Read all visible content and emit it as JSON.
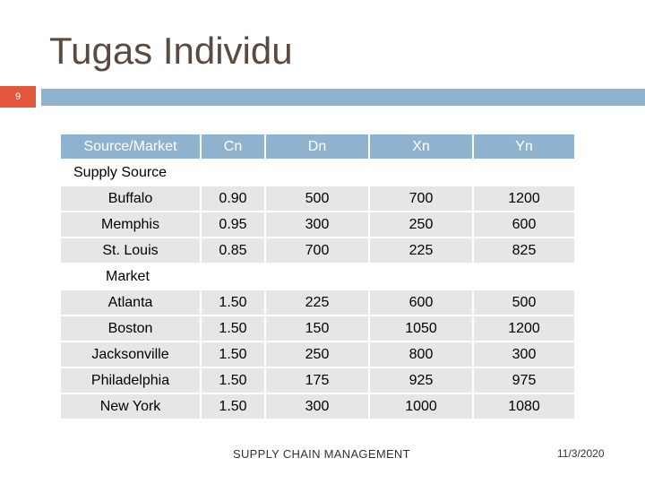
{
  "slide": {
    "title": "Tugas Individu",
    "number": "9"
  },
  "table": {
    "headers": [
      "Source/Market",
      "Cn",
      "Dn",
      "Xn",
      "Yn"
    ],
    "supply_label": "Supply Source",
    "supply_rows": [
      [
        "Buffalo",
        "0.90",
        "500",
        "700",
        "1200"
      ],
      [
        "Memphis",
        "0.95",
        "300",
        "250",
        "600"
      ],
      [
        "St. Louis",
        "0.85",
        "700",
        "225",
        "825"
      ]
    ],
    "market_label": "Market",
    "market_rows": [
      [
        "Atlanta",
        "1.50",
        "225",
        "600",
        "500"
      ],
      [
        "Boston",
        "1.50",
        "150",
        "1050",
        "1200"
      ],
      [
        "Jacksonville",
        "1.50",
        "250",
        "800",
        "300"
      ],
      [
        "Philadelphia",
        "1.50",
        "175",
        "925",
        "975"
      ],
      [
        "New York",
        "1.50",
        "300",
        "1000",
        "1080"
      ]
    ]
  },
  "footer": {
    "center": "SUPPLY CHAIN MANAGEMENT",
    "date": "11/3/2020"
  },
  "colors": {
    "accent_orange": "#e2573b",
    "accent_blue": "#8fb3ce",
    "cell_gray": "#e6e6e6"
  }
}
